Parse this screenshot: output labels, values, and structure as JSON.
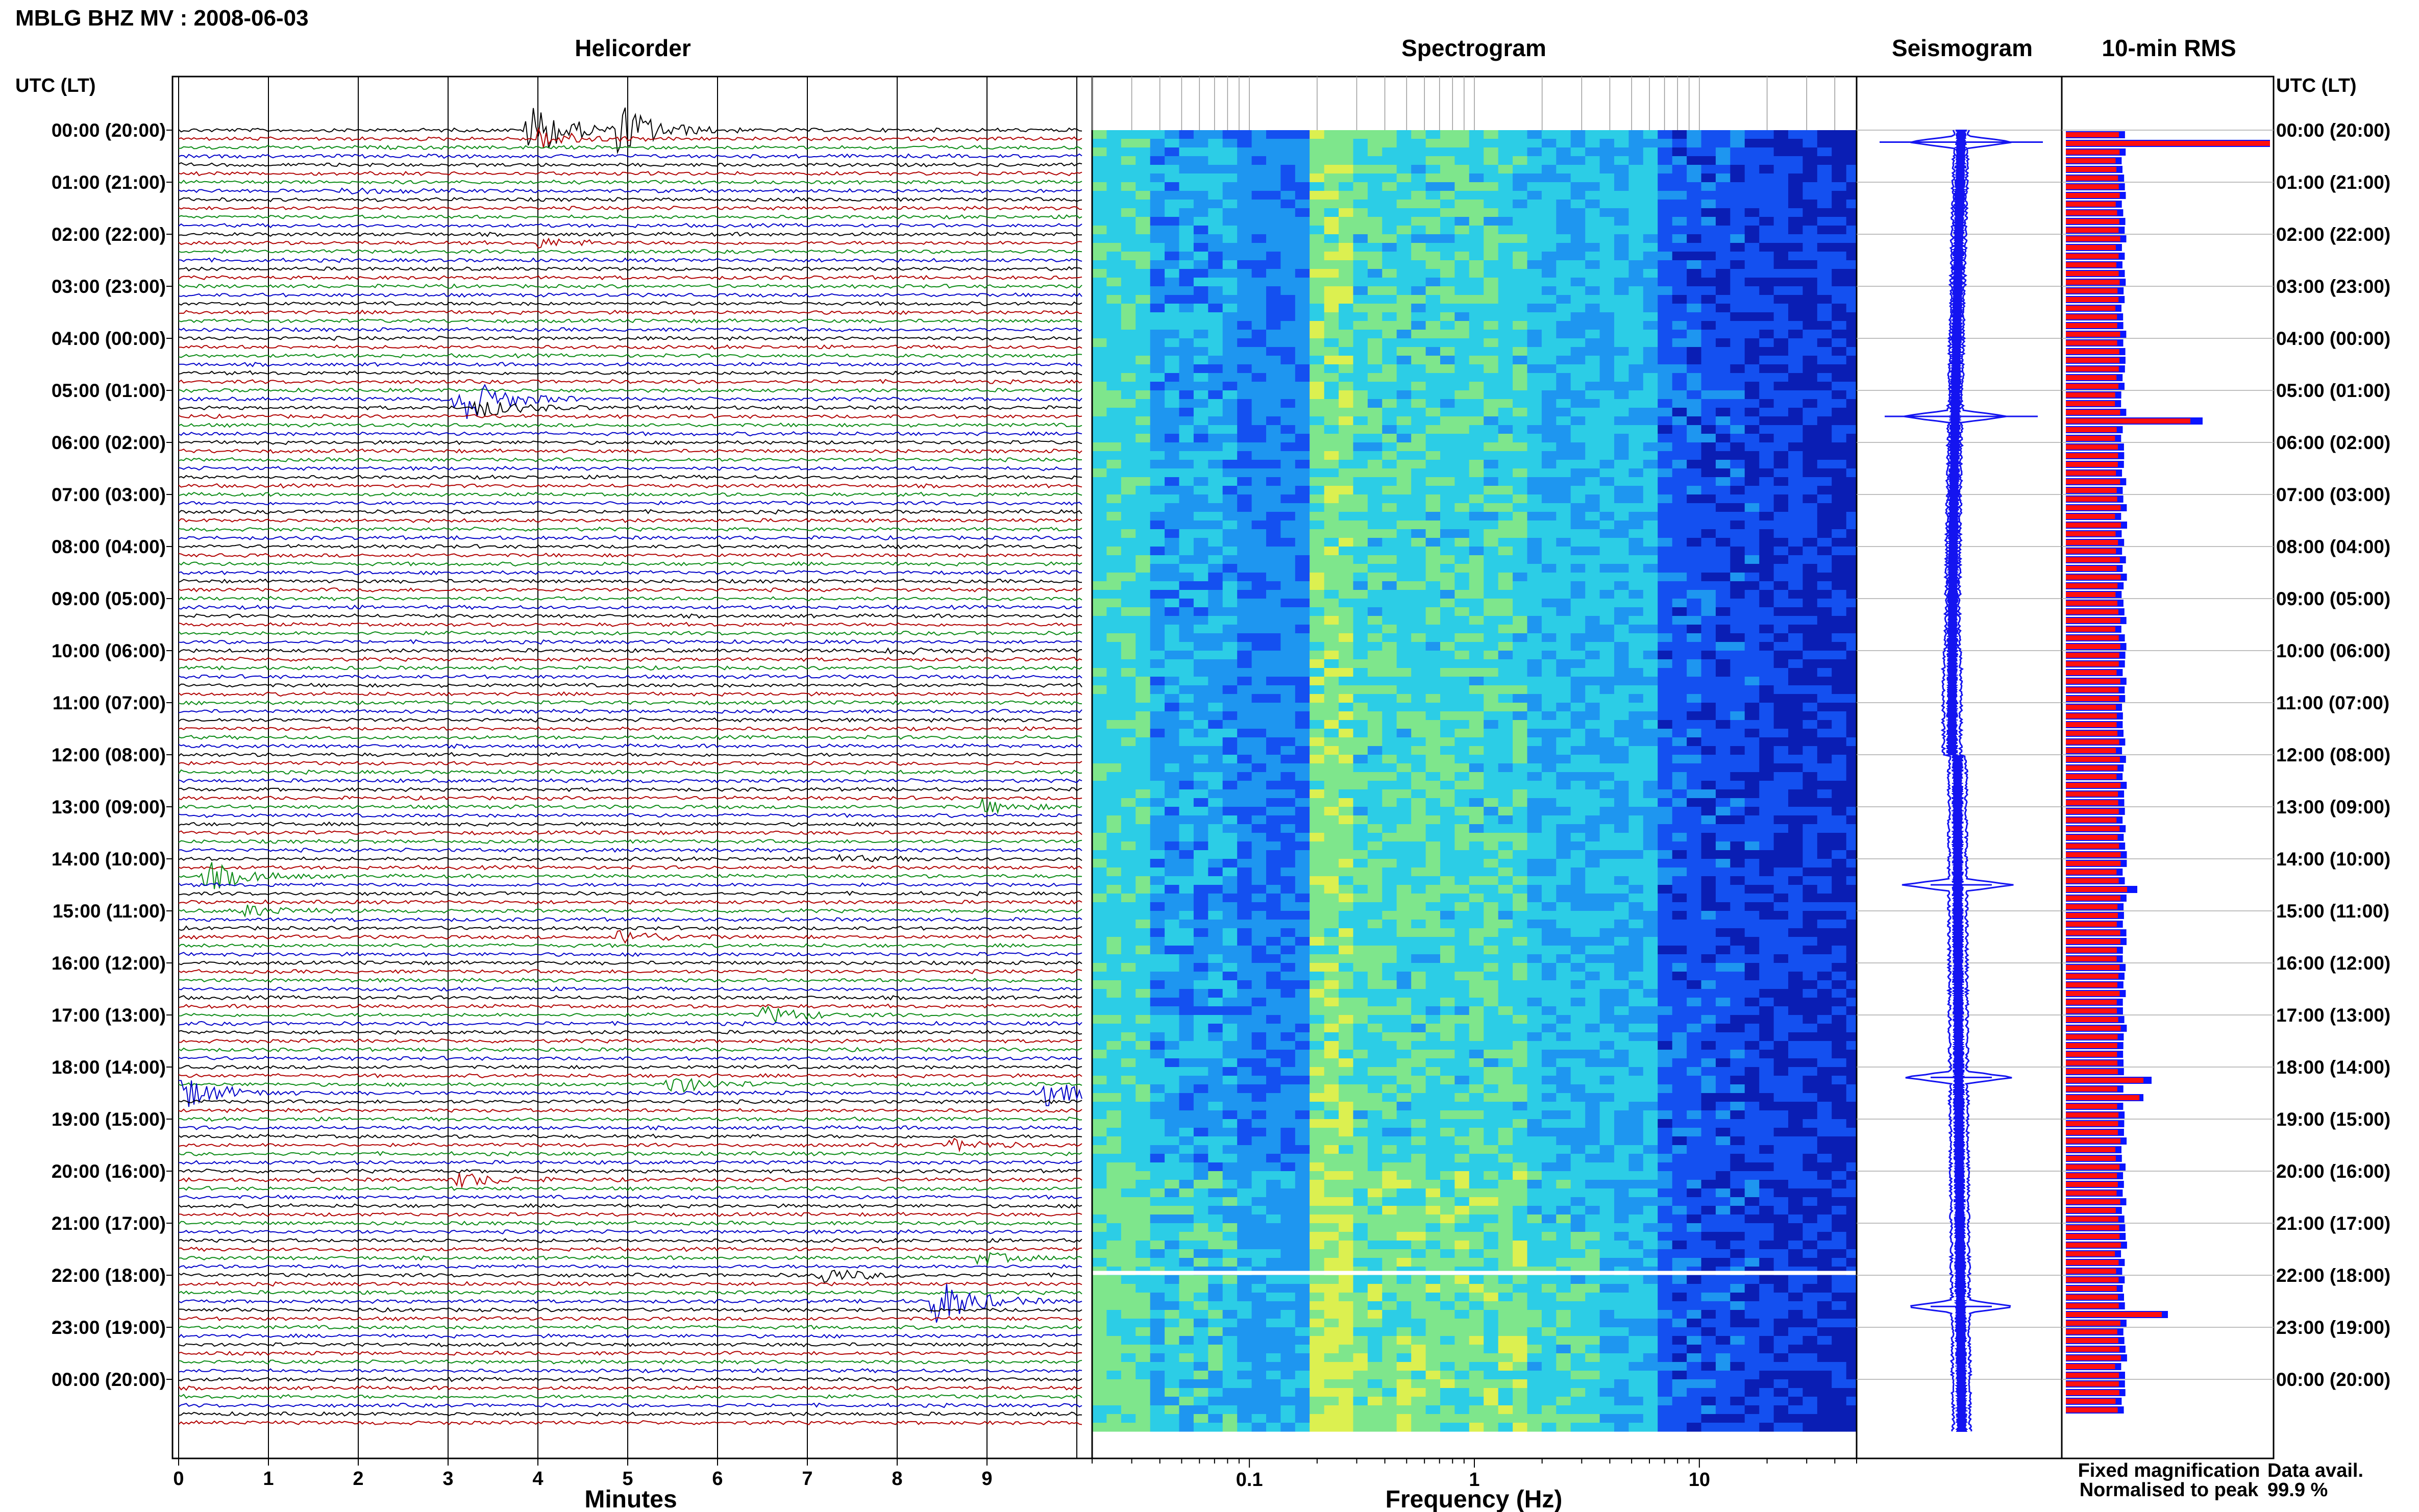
{
  "header": {
    "station_title": "MBLG BHZ MV : 2008-06-03",
    "utc_label": "UTC (LT)"
  },
  "panels": {
    "helicorder": "Helicorder",
    "spectrogram": "Spectrogram",
    "seismogram": "Seismogram",
    "rms": "10-min RMS"
  },
  "axes": {
    "minutes_label": "Minutes",
    "frequency_label": "Frequency (Hz)"
  },
  "legend": {
    "fixed": "Fixed magnification",
    "normalised": "Normalised to peak",
    "fixed_color": "#0a14ff",
    "normalised_color": "#ff1010"
  },
  "data_availability": {
    "label": "Data avail.",
    "value": "99.9 %"
  },
  "chart_data": [
    {
      "type": "line",
      "title": "Helicorder",
      "xlabel": "Minutes",
      "x_ticks": [
        "0",
        "1",
        "2",
        "3",
        "4",
        "5",
        "6",
        "7",
        "8",
        "9"
      ],
      "xlim": [
        0,
        10
      ],
      "rows_per_hour": 6,
      "trace_colors": [
        "#000000",
        "#b00000",
        "#0a8a14",
        "#0000c8"
      ],
      "time_labels_left": [
        "00:00 (20:00)",
        "01:00 (21:00)",
        "02:00 (22:00)",
        "03:00 (23:00)",
        "04:00 (00:00)",
        "05:00 (01:00)",
        "06:00 (02:00)",
        "07:00 (03:00)",
        "08:00 (04:00)",
        "09:00 (05:00)",
        "10:00 (06:00)",
        "11:00 (07:00)",
        "12:00 (08:00)",
        "13:00 (09:00)",
        "14:00 (10:00)",
        "15:00 (11:00)",
        "16:00 (12:00)",
        "17:00 (13:00)",
        "18:00 (14:00)",
        "19:00 (15:00)",
        "20:00 (16:00)",
        "21:00 (17:00)",
        "22:00 (18:00)",
        "23:00 (19:00)",
        "00:00 (20:00)"
      ],
      "time_labels_right": [
        "00:00 (20:00)",
        "01:00 (21:00)",
        "02:00 (22:00)",
        "03:00 (23:00)",
        "04:00 (00:00)",
        "05:00 (01:00)",
        "06:00 (02:00)",
        "07:00 (03:00)",
        "08:00 (04:00)",
        "09:00 (05:00)",
        "10:00 (06:00)",
        "11:00 (07:00)",
        "12:00 (08:00)",
        "13:00 (09:00)",
        "14:00 (10:00)",
        "15:00 (11:00)",
        "16:00 (12:00)",
        "17:00 (13:00)",
        "18:00 (14:00)",
        "19:00 (15:00)",
        "20:00 (16:00)",
        "21:00 (17:00)",
        "22:00 (18:00)",
        "23:00 (19:00)",
        "00:00 (20:00)"
      ],
      "events": [
        {
          "row": 0,
          "minute": 3.9,
          "amplitude": 1.0
        },
        {
          "row": 0,
          "minute": 4.9,
          "amplitude": 0.85
        },
        {
          "row": 1,
          "minute": 4.0,
          "amplitude": 0.35
        },
        {
          "row": 7,
          "minute": 1.8,
          "amplitude": 0.12
        },
        {
          "row": 13,
          "minute": 4.0,
          "amplitude": 0.15
        },
        {
          "row": 31,
          "minute": 3.1,
          "amplitude": 0.95
        },
        {
          "row": 32,
          "minute": 3.3,
          "amplitude": 0.35
        },
        {
          "row": 60,
          "minute": 7.9,
          "amplitude": 0.1
        },
        {
          "row": 78,
          "minute": 8.9,
          "amplitude": 0.25
        },
        {
          "row": 84,
          "minute": 7.2,
          "amplitude": 0.15
        },
        {
          "row": 86,
          "minute": 0.3,
          "amplitude": 0.5
        },
        {
          "row": 90,
          "minute": 0.7,
          "amplitude": 0.2
        },
        {
          "row": 93,
          "minute": 4.9,
          "amplitude": 0.25
        },
        {
          "row": 102,
          "minute": 6.5,
          "amplitude": 0.3
        },
        {
          "row": 110,
          "minute": 5.4,
          "amplitude": 0.35
        },
        {
          "row": 111,
          "minute": 0.0,
          "amplitude": 0.6
        },
        {
          "row": 111,
          "minute": 9.55,
          "amplitude": 0.55
        },
        {
          "row": 117,
          "minute": 8.6,
          "amplitude": 0.2
        },
        {
          "row": 121,
          "minute": 3.1,
          "amplitude": 0.25
        },
        {
          "row": 130,
          "minute": 8.9,
          "amplitude": 0.2
        },
        {
          "row": 132,
          "minute": 7.1,
          "amplitude": 0.3
        },
        {
          "row": 135,
          "minute": 8.4,
          "amplitude": 0.85
        }
      ]
    },
    {
      "type": "heatmap",
      "title": "Spectrogram",
      "xlabel": "Frequency (Hz)",
      "x_scale": "log",
      "xlim": [
        0.02,
        50
      ],
      "x_ticks": [
        "0.1",
        "1",
        "10"
      ],
      "colormap": [
        "#0a1eb4",
        "#1450f0",
        "#1e96f0",
        "#2ccde6",
        "#7ee68c",
        "#dcf050"
      ]
    },
    {
      "type": "line",
      "title": "Seismogram",
      "spikes_hours": [
        0.23,
        5.5,
        14.5,
        18.2,
        22.6
      ]
    },
    {
      "type": "bar",
      "title": "10-min RMS",
      "orientation": "horizontal",
      "series": [
        {
          "name": "Fixed magnification",
          "color": "#0a14ff"
        },
        {
          "name": "Normalised to peak",
          "color": "#ff1010"
        }
      ],
      "peaks": [
        {
          "hour": 0.17,
          "fixed": 1.0,
          "normalised": 1.0
        },
        {
          "hour": 5.5,
          "fixed": 0.67,
          "normalised": 0.61
        },
        {
          "hour": 14.5,
          "fixed": 0.35,
          "normalised": 0.3
        },
        {
          "hour": 18.2,
          "fixed": 0.42,
          "normalised": 0.38
        },
        {
          "hour": 18.5,
          "fixed": 0.38,
          "normalised": 0.36
        },
        {
          "hour": 22.6,
          "fixed": 0.5,
          "normalised": 0.47
        }
      ],
      "baseline": 0.27
    }
  ]
}
